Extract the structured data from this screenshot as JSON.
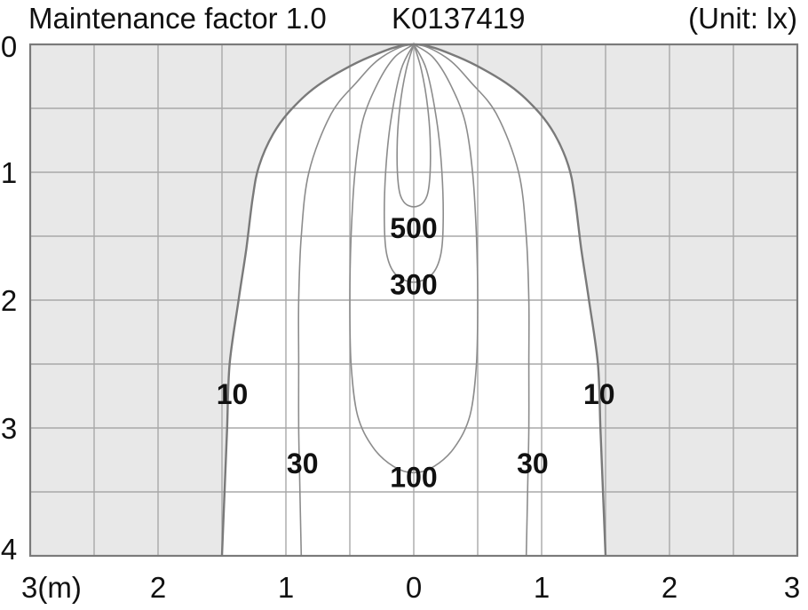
{
  "header": {
    "title": "Maintenance factor 1.0",
    "model": "K0137419",
    "unit": "(Unit: lx)"
  },
  "colors": {
    "outside_fill": "#e8e8e8",
    "inside_fill": "#ffffff",
    "grid": "#a8a8a8",
    "contour": "#8c8c8c",
    "outer_contour": "#7a7a7a",
    "text": "#111111"
  },
  "chart_data": {
    "type": "contour",
    "title": "Maintenance factor 1.0",
    "unit": "lx",
    "x_range": [
      -3,
      3
    ],
    "y_range": [
      0,
      4
    ],
    "x_tick_labels": [
      "3(m)",
      "2",
      "1",
      "0",
      "1",
      "2",
      "3"
    ],
    "x_tick_values": [
      -3,
      -2,
      -1,
      0,
      1,
      2,
      3
    ],
    "y_tick_labels": [
      "0",
      "1",
      "2",
      "3",
      "4"
    ],
    "y_tick_values": [
      0,
      1,
      2,
      3,
      4
    ],
    "grid": true,
    "grid_step": 0.5,
    "contours": [
      {
        "level": 10,
        "label": "10",
        "half_width": [
          {
            "y": 0.0,
            "x": 0.0
          },
          {
            "y": 0.1,
            "x": 0.35
          },
          {
            "y": 0.3,
            "x": 0.72
          },
          {
            "y": 0.5,
            "x": 0.95
          },
          {
            "y": 0.7,
            "x": 1.1
          },
          {
            "y": 0.95,
            "x": 1.21
          },
          {
            "y": 1.2,
            "x": 1.26
          },
          {
            "y": 1.6,
            "x": 1.31
          },
          {
            "y": 2.0,
            "x": 1.37
          },
          {
            "y": 2.5,
            "x": 1.44
          },
          {
            "y": 3.0,
            "x": 1.46
          },
          {
            "y": 3.5,
            "x": 1.48
          },
          {
            "y": 4.0,
            "x": 1.5
          }
        ],
        "labels_at": [
          {
            "x": -1.42,
            "y": 2.73
          },
          {
            "x": 1.45,
            "y": 2.73
          }
        ]
      },
      {
        "level": 30,
        "label": "30",
        "half_width": [
          {
            "y": 0.0,
            "x": 0.0
          },
          {
            "y": 0.1,
            "x": 0.25
          },
          {
            "y": 0.3,
            "x": 0.45
          },
          {
            "y": 0.55,
            "x": 0.65
          },
          {
            "y": 1.0,
            "x": 0.82
          },
          {
            "y": 1.5,
            "x": 0.88
          },
          {
            "y": 2.0,
            "x": 0.9
          },
          {
            "y": 2.5,
            "x": 0.9
          },
          {
            "y": 3.0,
            "x": 0.9
          },
          {
            "y": 3.5,
            "x": 0.89
          },
          {
            "y": 4.0,
            "x": 0.88
          }
        ],
        "labels_at": [
          {
            "x": -0.87,
            "y": 3.27
          },
          {
            "x": 0.93,
            "y": 3.27
          }
        ]
      },
      {
        "level": 100,
        "label": "100",
        "closed": true,
        "half_width": [
          {
            "y": 0.0,
            "x": 0.0
          },
          {
            "y": 0.1,
            "x": 0.15
          },
          {
            "y": 0.3,
            "x": 0.28
          },
          {
            "y": 0.6,
            "x": 0.4
          },
          {
            "y": 1.0,
            "x": 0.46
          },
          {
            "y": 1.5,
            "x": 0.49
          },
          {
            "y": 2.0,
            "x": 0.5
          },
          {
            "y": 2.5,
            "x": 0.49
          },
          {
            "y": 2.9,
            "x": 0.44
          },
          {
            "y": 3.15,
            "x": 0.32
          },
          {
            "y": 3.3,
            "x": 0.16
          },
          {
            "y": 3.35,
            "x": 0.0
          }
        ],
        "labels_at": [
          {
            "x": 0.0,
            "y": 3.38
          }
        ]
      },
      {
        "level": 300,
        "label": "300",
        "closed": true,
        "half_width": [
          {
            "y": 0.0,
            "x": 0.0
          },
          {
            "y": 0.2,
            "x": 0.1
          },
          {
            "y": 0.6,
            "x": 0.18
          },
          {
            "y": 1.0,
            "x": 0.22
          },
          {
            "y": 1.4,
            "x": 0.23
          },
          {
            "y": 1.65,
            "x": 0.21
          },
          {
            "y": 1.8,
            "x": 0.14
          },
          {
            "y": 1.86,
            "x": 0.0
          }
        ],
        "labels_at": [
          {
            "x": 0.0,
            "y": 1.87
          }
        ]
      },
      {
        "level": 500,
        "label": "500",
        "closed": true,
        "half_width": [
          {
            "y": 0.0,
            "x": 0.0
          },
          {
            "y": 0.2,
            "x": 0.06
          },
          {
            "y": 0.5,
            "x": 0.11
          },
          {
            "y": 0.8,
            "x": 0.13
          },
          {
            "y": 1.1,
            "x": 0.12
          },
          {
            "y": 1.23,
            "x": 0.08
          },
          {
            "y": 1.27,
            "x": 0.0
          }
        ],
        "labels_at": [
          {
            "x": 0.0,
            "y": 1.43
          }
        ]
      }
    ]
  }
}
